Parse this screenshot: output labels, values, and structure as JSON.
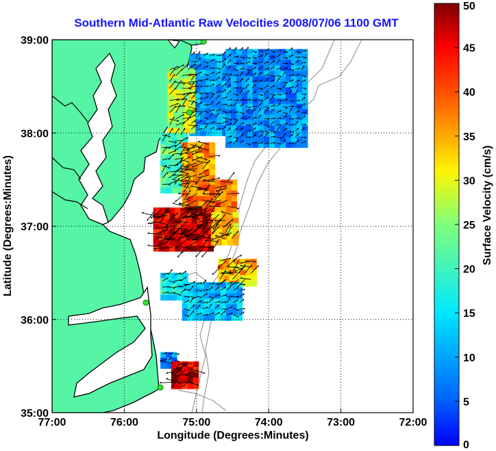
{
  "title": "Southern Mid-Atlantic Raw Velocities 2008/07/06 1100 GMT",
  "map": {
    "x_axis_label": "Longitude (Degrees:Minutes)",
    "y_axis_label": "Latitude (Degrees:Minutes)",
    "lon_range": [
      -77,
      -72
    ],
    "lat_range": [
      35,
      39
    ],
    "lon_ticks": [
      {
        "value": -77,
        "label": "77:00"
      },
      {
        "value": -76,
        "label": "76:00"
      },
      {
        "value": -75,
        "label": "75:00"
      },
      {
        "value": -74,
        "label": "74:00"
      },
      {
        "value": -73,
        "label": "73:00"
      },
      {
        "value": -72,
        "label": "72:00"
      }
    ],
    "lat_ticks": [
      {
        "value": 39,
        "label": "39:00"
      },
      {
        "value": 38,
        "label": "38:00"
      },
      {
        "value": 37,
        "label": "37:00"
      },
      {
        "value": 36,
        "label": "36:00"
      },
      {
        "value": 35,
        "label": "35:00"
      }
    ],
    "grid": "dotted",
    "land_color": "#55f5a5",
    "coast_color": "#000000",
    "bathymetry_color": "#999999"
  },
  "colorbar": {
    "label": "Surface Velocity (cm/s)",
    "min": 0,
    "max": 50,
    "ticks": [
      {
        "value": 0,
        "label": "0"
      },
      {
        "value": 5,
        "label": "5"
      },
      {
        "value": 10,
        "label": "10"
      },
      {
        "value": 15,
        "label": "15"
      },
      {
        "value": 20,
        "label": "20"
      },
      {
        "value": 25,
        "label": "25"
      },
      {
        "value": 30,
        "label": "30"
      },
      {
        "value": 35,
        "label": "35"
      },
      {
        "value": 40,
        "label": "40"
      },
      {
        "value": 45,
        "label": "45"
      },
      {
        "value": 50,
        "label": "50"
      }
    ],
    "colormap": "jet"
  },
  "radar_sites": [
    {
      "lon": -74.9,
      "lat": 38.98
    },
    {
      "lon": -75.1,
      "lat": 38.22
    },
    {
      "lon": -75.7,
      "lat": 36.18
    },
    {
      "lon": -75.5,
      "lat": 35.27
    }
  ],
  "velocity_regions": [
    {
      "lon_min": -75.1,
      "lon_max": -74.6,
      "lat_min": 38.0,
      "lat_max": 38.85,
      "speed": 10
    },
    {
      "lon_min": -74.6,
      "lon_max": -73.5,
      "lat_min": 37.85,
      "lat_max": 38.9,
      "speed": 9
    },
    {
      "lon_min": -75.4,
      "lon_max": -75.05,
      "lat_min": 38.05,
      "lat_max": 38.7,
      "speed": 28
    },
    {
      "lon_min": -75.5,
      "lon_max": -75.15,
      "lat_min": 37.4,
      "lat_max": 38.0,
      "speed": 22
    },
    {
      "lon_min": -75.2,
      "lon_max": -74.75,
      "lat_min": 37.5,
      "lat_max": 37.9,
      "speed": 36
    },
    {
      "lon_min": -75.2,
      "lon_max": -74.5,
      "lat_min": 37.15,
      "lat_max": 37.5,
      "speed": 38
    },
    {
      "lon_min": -75.6,
      "lon_max": -74.8,
      "lat_min": 36.75,
      "lat_max": 37.2,
      "speed": 46
    },
    {
      "lon_min": -74.8,
      "lon_max": -74.45,
      "lat_min": 36.8,
      "lat_max": 37.15,
      "speed": 33
    },
    {
      "lon_min": -74.7,
      "lon_max": -74.2,
      "lat_min": 36.4,
      "lat_max": 36.65,
      "speed": 34
    },
    {
      "lon_min": -75.2,
      "lon_max": -74.4,
      "lat_min": 36.0,
      "lat_max": 36.4,
      "speed": 12
    },
    {
      "lon_min": -75.5,
      "lon_max": -75.15,
      "lat_min": 36.25,
      "lat_max": 36.5,
      "speed": 16
    },
    {
      "lon_min": -75.5,
      "lon_max": -75.3,
      "lat_min": 35.5,
      "lat_max": 35.65,
      "speed": 8
    },
    {
      "lon_min": -75.35,
      "lon_max": -75.0,
      "lat_min": 35.3,
      "lat_max": 35.55,
      "speed": 46
    }
  ]
}
